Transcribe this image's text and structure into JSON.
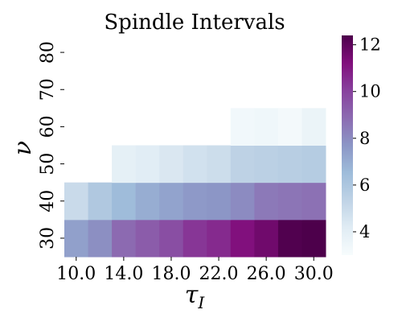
{
  "chart_data": {
    "type": "heatmap",
    "title": "Spindle Intervals",
    "xlabel": "τ",
    "xlabel_sub": "I",
    "ylabel": "ν",
    "x_ticks": [
      "10.0",
      "14.0",
      "18.0",
      "22.0",
      "26.0",
      "30.0"
    ],
    "y_ticks": [
      "30",
      "40",
      "50",
      "60",
      "70",
      "80"
    ],
    "x": [
      10,
      12,
      14,
      16,
      18,
      20,
      22,
      24,
      26,
      28,
      30
    ],
    "y": [
      30,
      40,
      50,
      60,
      70,
      80
    ],
    "values": [
      [
        7.4,
        7.9,
        8.9,
        9.3,
        9.7,
        10.3,
        10.6,
        11.2,
        11.6,
        12.3,
        12.4
      ],
      [
        5.0,
        5.9,
        6.5,
        7.0,
        7.3,
        7.6,
        7.7,
        8.0,
        8.5,
        8.6,
        8.7
      ],
      [
        null,
        null,
        3.9,
        4.1,
        4.4,
        4.7,
        4.9,
        5.4,
        5.5,
        5.6,
        5.7
      ],
      [
        null,
        null,
        null,
        null,
        null,
        null,
        null,
        3.3,
        3.4,
        3.2,
        3.6
      ],
      [
        null,
        null,
        null,
        null,
        null,
        null,
        null,
        null,
        null,
        null,
        null
      ],
      [
        null,
        null,
        null,
        null,
        null,
        null,
        null,
        null,
        null,
        null,
        null
      ]
    ],
    "colorbar": {
      "min": 3.0,
      "max": 12.4,
      "ticks": [
        4,
        6,
        8,
        10,
        12
      ]
    },
    "colormap": "BuPu",
    "colormap_stops": [
      "#f7fcfd",
      "#e0ecf4",
      "#bfd3e6",
      "#9ebcda",
      "#8c96c6",
      "#8c6bb1",
      "#88419d",
      "#810f7c",
      "#4d004b"
    ]
  }
}
